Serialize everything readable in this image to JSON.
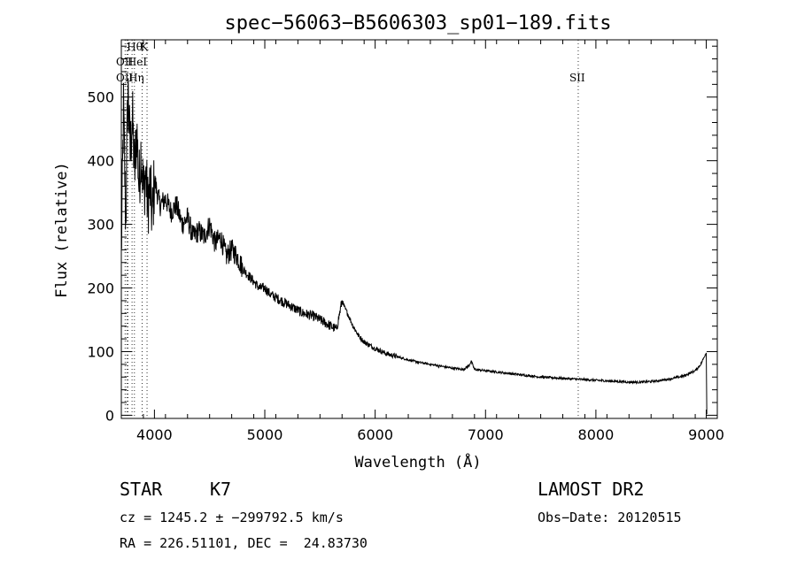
{
  "chart_data": {
    "type": "line",
    "title": "spec−56063−B5606303_sp01−189.fits",
    "xlabel": "Wavelength (Å)",
    "ylabel": "Flux (relative)",
    "xlim": [
      3700,
      9100
    ],
    "ylim": [
      -5,
      590
    ],
    "x_ticks": [
      4000,
      5000,
      6000,
      7000,
      8000,
      9000
    ],
    "y_ticks": [
      0,
      100,
      200,
      300,
      400,
      500
    ],
    "grid": false,
    "series": [
      {
        "x": [
          3700,
          3720,
          3740,
          3760,
          3780,
          3800,
          3820,
          3840,
          3860,
          3880,
          3900,
          3920,
          3940,
          3960,
          3980,
          4000,
          4050,
          4100,
          4150,
          4200,
          4250,
          4300,
          4350,
          4400,
          4450,
          4500,
          4550,
          4600,
          4650,
          4700,
          4750,
          4800,
          4850,
          4900,
          4950,
          5000,
          5050,
          5100,
          5150,
          5200,
          5250,
          5300,
          5350,
          5400,
          5450,
          5500,
          5550,
          5600,
          5650,
          5700,
          5720,
          5750,
          5800,
          5850,
          5900,
          5950,
          6000,
          6100,
          6200,
          6300,
          6400,
          6500,
          6600,
          6700,
          6800,
          6850,
          6870,
          6900,
          7000,
          7100,
          7200,
          7300,
          7400,
          7500,
          7600,
          7700,
          7800,
          7900,
          8000,
          8100,
          8200,
          8300,
          8400,
          8500,
          8600,
          8700,
          8800,
          8900,
          8950,
          8990,
          9000,
          9005
        ],
        "y": [
          250,
          480,
          300,
          520,
          410,
          470,
          380,
          450,
          360,
          420,
          350,
          380,
          330,
          360,
          310,
          370,
          330,
          340,
          320,
          330,
          300,
          310,
          280,
          290,
          280,
          300,
          270,
          280,
          250,
          260,
          250,
          230,
          220,
          210,
          200,
          200,
          190,
          185,
          180,
          175,
          170,
          165,
          160,
          158,
          155,
          150,
          145,
          140,
          135,
          180,
          170,
          160,
          140,
          125,
          115,
          110,
          105,
          97,
          92,
          87,
          83,
          80,
          77,
          74,
          72,
          78,
          85,
          72,
          70,
          68,
          66,
          64,
          62,
          60,
          59,
          58,
          57,
          56,
          55,
          54,
          53,
          52,
          52,
          53,
          55,
          58,
          62,
          70,
          80,
          95,
          98,
          2
        ]
      }
    ],
    "lines": [
      {
        "x": 3734,
        "label": "Hθ"
      },
      {
        "x": 3750,
        "label": "OII"
      },
      {
        "x": 3760,
        "label": "OII"
      },
      {
        "x": 3797,
        "label": "Hη"
      },
      {
        "x": 3819,
        "label": "HeI"
      },
      {
        "x": 3889,
        "label": "K"
      },
      {
        "x": 3933,
        "label": ""
      },
      {
        "x": 7840,
        "label": "SII"
      }
    ]
  },
  "info": {
    "object_class": "STAR",
    "subclass": "K7",
    "survey": "LAMOST DR2",
    "cz": "cz = 1245.2 ± −299792.5 km/s",
    "obs_date": "Obs−Date: 20120515",
    "radec": "RA = 226.51101, DEC =  24.83730"
  }
}
